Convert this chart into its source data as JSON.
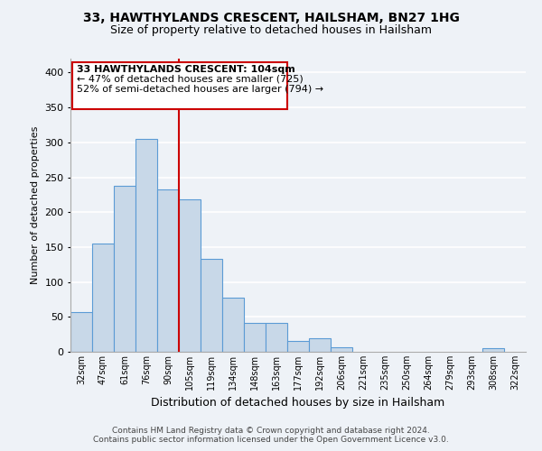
{
  "title1": "33, HAWTHYLANDS CRESCENT, HAILSHAM, BN27 1HG",
  "title2": "Size of property relative to detached houses in Hailsham",
  "xlabel": "Distribution of detached houses by size in Hailsham",
  "ylabel": "Number of detached properties",
  "bar_labels": [
    "32sqm",
    "47sqm",
    "61sqm",
    "76sqm",
    "90sqm",
    "105sqm",
    "119sqm",
    "134sqm",
    "148sqm",
    "163sqm",
    "177sqm",
    "192sqm",
    "206sqm",
    "221sqm",
    "235sqm",
    "250sqm",
    "264sqm",
    "279sqm",
    "293sqm",
    "308sqm",
    "322sqm"
  ],
  "bar_values": [
    57,
    155,
    238,
    305,
    233,
    219,
    133,
    78,
    41,
    42,
    15,
    20,
    7,
    0,
    0,
    0,
    0,
    0,
    0,
    5,
    0
  ],
  "bar_color": "#c8d8e8",
  "bar_edge_color": "#5b9bd5",
  "vline_index": 5,
  "vline_color": "#cc0000",
  "ylim": [
    0,
    420
  ],
  "yticks": [
    0,
    50,
    100,
    150,
    200,
    250,
    300,
    350,
    400
  ],
  "annotation_title": "33 HAWTHYLANDS CRESCENT: 104sqm",
  "annotation_line1": "← 47% of detached houses are smaller (725)",
  "annotation_line2": "52% of semi-detached houses are larger (794) →",
  "annotation_box_color": "#ffffff",
  "annotation_box_edge": "#cc0000",
  "footer1": "Contains HM Land Registry data © Crown copyright and database right 2024.",
  "footer2": "Contains public sector information licensed under the Open Government Licence v3.0.",
  "background_color": "#eef2f7",
  "grid_color": "#ffffff"
}
